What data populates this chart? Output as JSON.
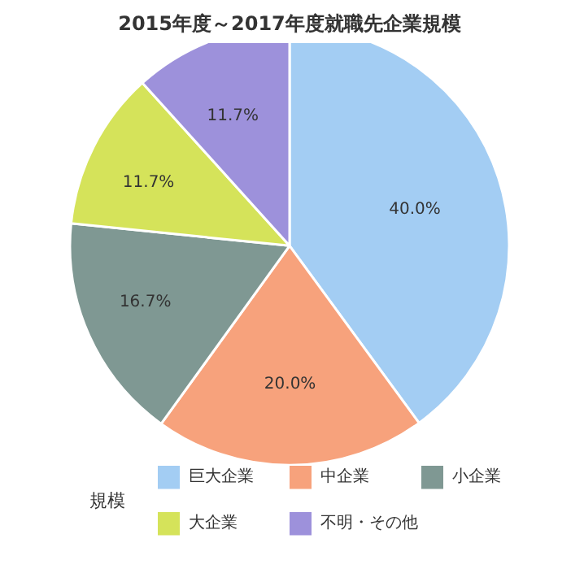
{
  "chart_data": {
    "type": "pie",
    "title": "2015年度～2017年度就職先企業規模",
    "legend_title": "規模",
    "legend": "bottom",
    "categories": [
      "巨大企業",
      "中企業",
      "小企業",
      "大企業",
      "不明・その他"
    ],
    "values": [
      40.0,
      20.0,
      16.7,
      11.7,
      11.7
    ],
    "colors": [
      "#a3cdf3",
      "#f7a27c",
      "#7f9893",
      "#d5e35a",
      "#9d91db"
    ],
    "value_labels": [
      "40.0%",
      "20.0%",
      "16.7%",
      "11.7%",
      "11.7%"
    ]
  }
}
